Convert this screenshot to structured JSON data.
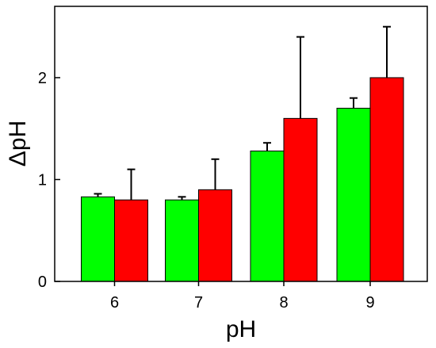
{
  "chart_data": {
    "type": "bar",
    "title": "",
    "xlabel": "pH",
    "ylabel": "ΔpH",
    "categories": [
      "6",
      "7",
      "8",
      "9"
    ],
    "ylim": [
      0,
      2.7
    ],
    "yticks": [
      0,
      1,
      2
    ],
    "grid": false,
    "legend": "none",
    "series": [
      {
        "color": "#00ff00",
        "values": [
          0.83,
          0.8,
          1.28,
          1.7
        ],
        "errors": [
          0.03,
          0.03,
          0.08,
          0.1
        ]
      },
      {
        "color": "#ff0000",
        "values": [
          0.8,
          0.9,
          1.6,
          2.0
        ],
        "errors": [
          0.3,
          0.3,
          0.8,
          0.5
        ]
      }
    ]
  }
}
